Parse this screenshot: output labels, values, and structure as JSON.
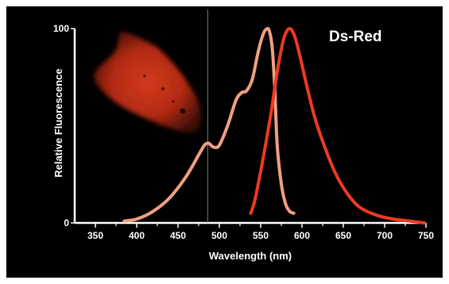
{
  "chart_data": {
    "type": "line",
    "title": "Ds-Red",
    "xlabel": "Wavelength (nm)",
    "ylabel": "Relative Fluorescence",
    "xlim": [
      325,
      750
    ],
    "ylim": [
      0,
      100
    ],
    "x_ticks": [
      "350",
      "400",
      "450",
      "500",
      "550",
      "600",
      "650",
      "700",
      "750"
    ],
    "y_ticks": [
      "0",
      "100"
    ],
    "grid": false,
    "series": [
      {
        "color": "#f0a080",
        "x": [
          385,
          400,
          420,
          440,
          460,
          475,
          482,
          487,
          493,
          500,
          510,
          520,
          527,
          533,
          540,
          547,
          553,
          558,
          561,
          564,
          567,
          570,
          575,
          580,
          585,
          590
        ],
        "y": [
          1,
          2,
          6,
          13,
          24,
          35,
          40,
          41,
          39,
          40,
          50,
          63,
          67,
          68,
          74,
          88,
          97,
          100,
          98,
          90,
          70,
          40,
          20,
          10,
          6,
          5
        ]
      },
      {
        "color": "#ee3a22",
        "x": [
          538,
          542,
          548,
          555,
          562,
          568,
          573,
          578,
          582,
          585,
          588,
          592,
          598,
          605,
          615,
          625,
          640,
          655,
          670,
          690,
          710,
          730,
          748
        ],
        "y": [
          5,
          10,
          22,
          38,
          55,
          72,
          85,
          95,
          99,
          100,
          99,
          95,
          85,
          72,
          55,
          42,
          26,
          15,
          8,
          4,
          2,
          1,
          0
        ]
      }
    ],
    "marker_line_x": 486
  }
}
